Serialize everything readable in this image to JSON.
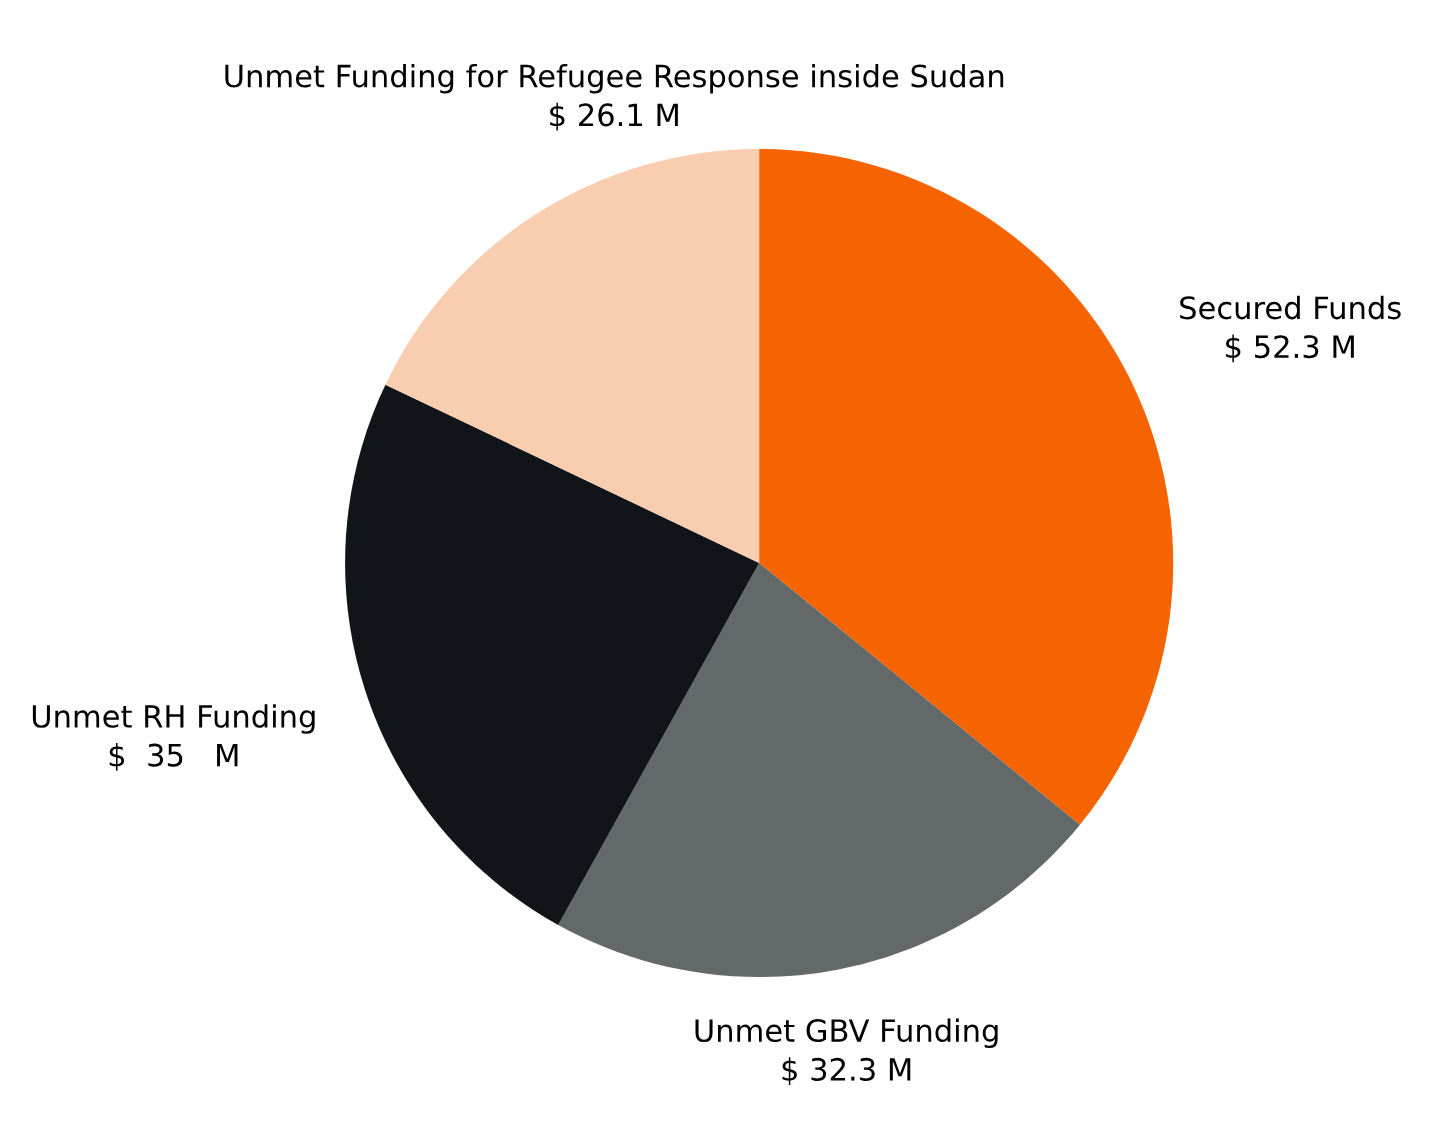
{
  "chart_data": {
    "type": "pie",
    "categories": [
      "Secured Funds",
      "Unmet GBV Funding",
      "Unmet RH Funding",
      "Unmet Funding for Refugee Response inside Sudan"
    ],
    "values": [
      52.3,
      32.3,
      35,
      26.1
    ],
    "value_labels": [
      "$ 52.3 M",
      "$ 32.3 M",
      "$  35   M",
      "$ 26.1 M"
    ],
    "colors": [
      "#f56400",
      "#636868",
      "#111519",
      "#f9cdb0"
    ]
  }
}
